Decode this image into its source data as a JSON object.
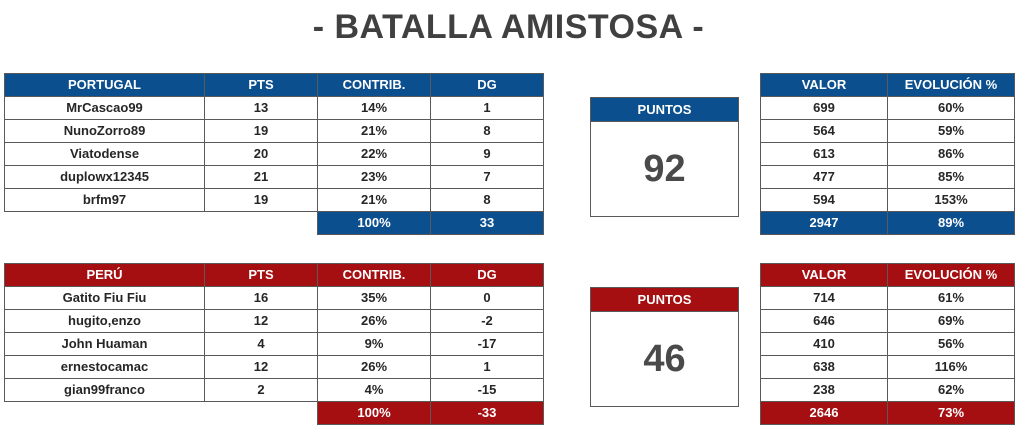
{
  "title": "- BATALLA AMISTOSA -",
  "headers": {
    "pts": "PTS",
    "contrib": "CONTRIB.",
    "dg": "DG",
    "valor": "VALOR",
    "evolucion": "EVOLUCIÓN %",
    "puntos": "PUNTOS"
  },
  "team1": {
    "name": "PORTUGAL",
    "color": "#0c4f8e",
    "rows": [
      {
        "player": "MrCascao99",
        "pts": "13",
        "contrib": "14%",
        "dg": "1",
        "valor": "699",
        "evol": "60%"
      },
      {
        "player": "NunoZorro89",
        "pts": "19",
        "contrib": "21%",
        "dg": "8",
        "valor": "564",
        "evol": "59%"
      },
      {
        "player": "Viatodense",
        "pts": "20",
        "contrib": "22%",
        "dg": "9",
        "valor": "613",
        "evol": "86%"
      },
      {
        "player": "duplowx12345",
        "pts": "21",
        "contrib": "23%",
        "dg": "7",
        "valor": "477",
        "evol": "85%"
      },
      {
        "player": "brfm97",
        "pts": "19",
        "contrib": "21%",
        "dg": "8",
        "valor": "594",
        "evol": "153%"
      }
    ],
    "total": {
      "contrib": "100%",
      "dg": "33",
      "valor": "2947",
      "evol": "89%"
    },
    "puntos": "92"
  },
  "team2": {
    "name": "PERÚ",
    "color": "#a50f12",
    "rows": [
      {
        "player": "Gatito Fiu Fiu",
        "pts": "16",
        "contrib": "35%",
        "dg": "0",
        "valor": "714",
        "evol": "61%"
      },
      {
        "player": "hugito,enzo",
        "pts": "12",
        "contrib": "26%",
        "dg": "-2",
        "valor": "646",
        "evol": "69%"
      },
      {
        "player": "John Huaman",
        "pts": "4",
        "contrib": "9%",
        "dg": "-17",
        "valor": "410",
        "evol": "56%"
      },
      {
        "player": "ernestocamac",
        "pts": "12",
        "contrib": "26%",
        "dg": "1",
        "valor": "638",
        "evol": "116%"
      },
      {
        "player": "gian99franco",
        "pts": "2",
        "contrib": "4%",
        "dg": "-15",
        "valor": "238",
        "evol": "62%"
      }
    ],
    "total": {
      "contrib": "100%",
      "dg": "-33",
      "valor": "2646",
      "evol": "73%"
    },
    "puntos": "46"
  }
}
